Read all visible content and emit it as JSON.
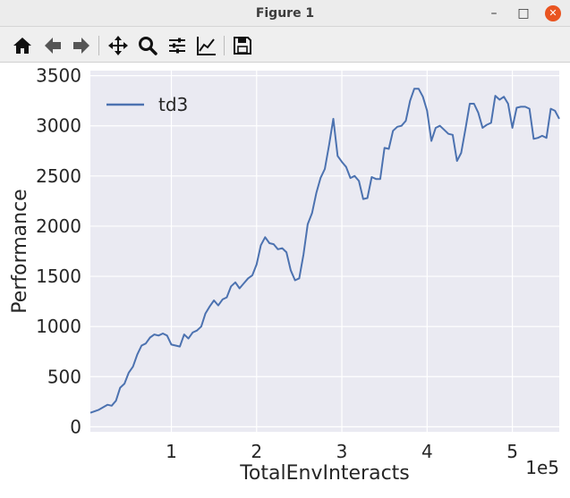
{
  "window": {
    "title": "Figure 1"
  },
  "toolbar": {
    "buttons": [
      {
        "name": "home-icon"
      },
      {
        "name": "back-icon"
      },
      {
        "name": "forward-icon"
      },
      {
        "name": "pan-icon"
      },
      {
        "name": "zoom-icon"
      },
      {
        "name": "configure-subplots-icon"
      },
      {
        "name": "edit-axis-icon"
      },
      {
        "name": "save-icon"
      }
    ]
  },
  "colors": {
    "plot_bg": "#eaeaf2",
    "grid": "#ffffff",
    "line": "#4c72b0",
    "close_button": "#e95420"
  },
  "chart_data": {
    "type": "line",
    "xlabel": "TotalEnvInteracts",
    "ylabel": "Performance",
    "x_offset_text": "1e5",
    "xlim": [
      0.05,
      5.55
    ],
    "ylim": [
      -50,
      3550
    ],
    "xticks": [
      1,
      2,
      3,
      4,
      5
    ],
    "yticks": [
      0,
      500,
      1000,
      1500,
      2000,
      2500,
      3000,
      3500
    ],
    "grid": true,
    "legend_position": "upper left",
    "series": [
      {
        "name": "td3",
        "x": [
          0.05,
          0.15,
          0.2,
          0.25,
          0.3,
          0.35,
          0.4,
          0.45,
          0.5,
          0.55,
          0.6,
          0.65,
          0.7,
          0.75,
          0.8,
          0.85,
          0.9,
          0.95,
          1.0,
          1.05,
          1.1,
          1.15,
          1.2,
          1.25,
          1.3,
          1.35,
          1.4,
          1.45,
          1.5,
          1.55,
          1.6,
          1.65,
          1.7,
          1.75,
          1.8,
          1.85,
          1.9,
          1.95,
          2.0,
          2.05,
          2.1,
          2.15,
          2.2,
          2.25,
          2.3,
          2.35,
          2.4,
          2.45,
          2.5,
          2.55,
          2.6,
          2.65,
          2.7,
          2.75,
          2.8,
          2.85,
          2.9,
          2.95,
          3.0,
          3.05,
          3.1,
          3.15,
          3.2,
          3.25,
          3.3,
          3.35,
          3.4,
          3.45,
          3.5,
          3.55,
          3.6,
          3.65,
          3.7,
          3.75,
          3.8,
          3.85,
          3.9,
          3.95,
          4.0,
          4.05,
          4.1,
          4.15,
          4.2,
          4.25,
          4.3,
          4.35,
          4.4,
          4.45,
          4.5,
          4.55,
          4.6,
          4.65,
          4.7,
          4.75,
          4.8,
          4.85,
          4.9,
          4.95,
          5.0,
          5.05,
          5.1,
          5.15,
          5.2,
          5.25,
          5.3,
          5.35,
          5.4,
          5.45,
          5.5,
          5.55
        ],
        "y": [
          140,
          170,
          195,
          220,
          210,
          260,
          390,
          430,
          540,
          600,
          720,
          810,
          830,
          890,
          920,
          910,
          930,
          910,
          820,
          810,
          800,
          920,
          880,
          940,
          960,
          1000,
          1130,
          1200,
          1260,
          1210,
          1270,
          1290,
          1400,
          1440,
          1380,
          1430,
          1480,
          1510,
          1620,
          1810,
          1890,
          1830,
          1820,
          1770,
          1780,
          1740,
          1560,
          1460,
          1480,
          1720,
          2020,
          2130,
          2330,
          2480,
          2570,
          2810,
          3070,
          2700,
          2640,
          2590,
          2480,
          2500,
          2450,
          2270,
          2280,
          2490,
          2470,
          2470,
          2780,
          2770,
          2950,
          2990,
          3000,
          3050,
          3250,
          3370,
          3370,
          3290,
          3150,
          2850,
          2980,
          3000,
          2960,
          2920,
          2910,
          2650,
          2730,
          2970,
          3220,
          3220,
          3130,
          2980,
          3010,
          3030,
          3300,
          3260,
          3290,
          3220,
          2980,
          3180,
          3190,
          3190,
          3170,
          2870,
          2880,
          2900,
          2880,
          3170,
          3150,
          3070
        ]
      }
    ]
  }
}
